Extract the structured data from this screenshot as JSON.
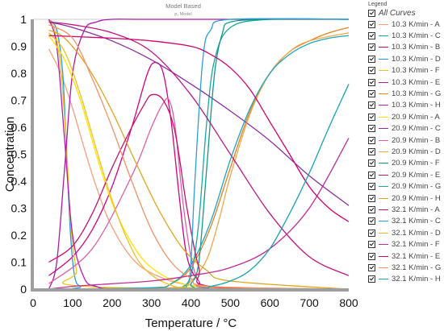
{
  "header": {
    "title": "Model Based",
    "subtitle": "p₁ Model"
  },
  "legend": {
    "title": "Legend",
    "all_label": "All Curves",
    "items": [
      {
        "label": "10.3 K/min - A",
        "color": "#F4A07F"
      },
      {
        "label": "10.3 K/min - C",
        "color": "#17A9A0"
      },
      {
        "label": "10.3 K/min - B",
        "color": "#D7007F"
      },
      {
        "label": "10.3 K/min - D",
        "color": "#1E9ED9"
      },
      {
        "label": "10.3 K/min - F",
        "color": "#F2C21B"
      },
      {
        "label": "10.3 K/min - E",
        "color": "#AE1BA1"
      },
      {
        "label": "10.3 K/min - G",
        "color": "#E8801E"
      },
      {
        "label": "10.3 K/min - H",
        "color": "#B51FB0"
      },
      {
        "label": "20.9 K/min - A",
        "color": "#FFE200"
      },
      {
        "label": "20.9 K/min - C",
        "color": "#8C2C9F"
      },
      {
        "label": "20.9 K/min - B",
        "color": "#DF5FA7"
      },
      {
        "label": "20.9 K/min - D",
        "color": "#F0A64A"
      },
      {
        "label": "20.9 K/min - F",
        "color": "#0E9A8A"
      },
      {
        "label": "20.9 K/min - E",
        "color": "#C1167F"
      },
      {
        "label": "20.9 K/min - G",
        "color": "#1AA6C2"
      },
      {
        "label": "20.9 K/min - H",
        "color": "#E0A51F"
      },
      {
        "label": "32.1 K/min - A",
        "color": "#C8106E"
      },
      {
        "label": "32.1 K/min - C",
        "color": "#2C9ED8"
      },
      {
        "label": "32.1 K/min - D",
        "color": "#F0C020"
      },
      {
        "label": "32.1 K/min - F",
        "color": "#C02E98"
      },
      {
        "label": "32.1 K/min - E",
        "color": "#D4006D"
      },
      {
        "label": "32.1 K/min - G",
        "color": "#F29268"
      },
      {
        "label": "32.1 K/min - H",
        "color": "#16A5B5"
      }
    ]
  },
  "chart_data": {
    "type": "line",
    "xlabel": "Temperature / °C",
    "ylabel": "Concentration",
    "xlim": [
      0,
      800
    ],
    "ylim": [
      0,
      1
    ],
    "xticks": [
      0,
      100,
      200,
      300,
      400,
      500,
      600,
      700,
      800
    ],
    "yticks": [
      0,
      0.1,
      0.2,
      0.3,
      0.4,
      0.5,
      0.6,
      0.7,
      0.8,
      0.9,
      1
    ],
    "grid": false,
    "legend_position": "right",
    "series": [
      {
        "name": "10.3 K/min - A",
        "color": "#F4A07F",
        "x": [
          40,
          70,
          100,
          130,
          160,
          200,
          260,
          330,
          400,
          500,
          600,
          800
        ],
        "y": [
          0.89,
          0.8,
          0.67,
          0.52,
          0.38,
          0.23,
          0.1,
          0.04,
          0.015,
          0.006,
          0.003,
          0.001
        ]
      },
      {
        "name": "10.3 K/min - C",
        "color": "#17A9A0",
        "x": [
          40,
          350,
          380,
          400,
          420,
          440,
          460,
          500,
          600,
          800
        ],
        "y": [
          0,
          0,
          0.01,
          0.05,
          0.25,
          0.62,
          0.85,
          0.97,
          1,
          1
        ]
      },
      {
        "name": "10.3 K/min - B",
        "color": "#D7007F",
        "x": [
          40,
          100,
          150,
          200,
          250,
          290,
          310,
          330,
          350,
          370,
          390,
          420,
          460,
          800
        ],
        "y": [
          0.05,
          0.12,
          0.22,
          0.38,
          0.6,
          0.8,
          0.84,
          0.8,
          0.62,
          0.35,
          0.12,
          0.03,
          0.005,
          0
        ]
      },
      {
        "name": "10.3 K/min - D",
        "color": "#1E9ED9",
        "x": [
          40,
          60,
          75,
          85,
          95,
          105,
          120,
          160,
          800
        ],
        "y": [
          1,
          0.96,
          0.8,
          0.5,
          0.2,
          0.05,
          0.01,
          0,
          0
        ]
      },
      {
        "name": "10.3 K/min - F",
        "color": "#F2C21B",
        "x": [
          40,
          55,
          70,
          85,
          95,
          110,
          130,
          800
        ],
        "y": [
          1,
          0.96,
          0.82,
          0.52,
          0.25,
          0.07,
          0.01,
          0
        ]
      },
      {
        "name": "10.3 K/min - E",
        "color": "#AE1BA1",
        "x": [
          40,
          60,
          80,
          100,
          130,
          160,
          200,
          300,
          800
        ],
        "y": [
          0,
          0.1,
          0.45,
          0.8,
          0.96,
          0.99,
          1,
          1,
          1
        ]
      },
      {
        "name": "10.3 K/min - G",
        "color": "#E8801E",
        "x": [
          40,
          300,
          350,
          400,
          450,
          500,
          550,
          600,
          650,
          700,
          750,
          800
        ],
        "y": [
          0,
          0.005,
          0.02,
          0.08,
          0.23,
          0.45,
          0.66,
          0.8,
          0.88,
          0.92,
          0.95,
          0.97
        ]
      },
      {
        "name": "10.3 K/min - H",
        "color": "#B51FB0",
        "x": [
          40,
          60,
          80,
          100,
          130,
          160,
          200,
          300,
          800
        ],
        "y": [
          1,
          0.9,
          0.55,
          0.2,
          0.04,
          0.01,
          0,
          0,
          0
        ]
      },
      {
        "name": "20.9 K/min - A",
        "color": "#FFE200",
        "x": [
          40,
          80,
          120,
          160,
          200,
          250,
          300,
          380,
          500,
          800
        ],
        "y": [
          0.94,
          0.85,
          0.7,
          0.5,
          0.32,
          0.17,
          0.08,
          0.02,
          0.005,
          0
        ]
      },
      {
        "name": "20.9 K/min - C",
        "color": "#8C2C9F",
        "x": [
          40,
          100,
          200,
          300,
          400,
          500,
          600,
          700,
          800
        ],
        "y": [
          0.99,
          0.97,
          0.92,
          0.85,
          0.76,
          0.66,
          0.55,
          0.42,
          0.31
        ]
      },
      {
        "name": "20.9 K/min - B",
        "color": "#DF5FA7",
        "x": [
          40,
          150,
          250,
          300,
          330,
          345,
          360,
          380,
          400,
          420,
          450,
          800
        ],
        "y": [
          0.02,
          0.15,
          0.42,
          0.6,
          0.69,
          0.7,
          0.6,
          0.32,
          0.12,
          0.03,
          0.005,
          0
        ]
      },
      {
        "name": "20.9 K/min - D",
        "color": "#F0A64A",
        "x": [
          40,
          350,
          400,
          440,
          470,
          500,
          550,
          600,
          650,
          700,
          800
        ],
        "y": [
          0,
          0.005,
          0.03,
          0.11,
          0.25,
          0.42,
          0.65,
          0.8,
          0.88,
          0.92,
          0.95
        ]
      },
      {
        "name": "20.9 K/min - F",
        "color": "#0E9A8A",
        "x": [
          40,
          380,
          400,
          420,
          440,
          460,
          480,
          500,
          600,
          800
        ],
        "y": [
          0,
          0,
          0.02,
          0.1,
          0.45,
          0.8,
          0.95,
          0.99,
          1,
          1
        ]
      },
      {
        "name": "20.9 K/min - E",
        "color": "#C1167F",
        "x": [
          40,
          100,
          200,
          300,
          400,
          500,
          600,
          700,
          800
        ],
        "y": [
          0.99,
          0.98,
          0.95,
          0.88,
          0.72,
          0.5,
          0.28,
          0.12,
          0.05
        ]
      },
      {
        "name": "20.9 K/min - G",
        "color": "#1AA6C2",
        "x": [
          40,
          300,
          350,
          400,
          450,
          500,
          550,
          600,
          650,
          700,
          750,
          800
        ],
        "y": [
          0,
          0.005,
          0.02,
          0.09,
          0.25,
          0.48,
          0.67,
          0.8,
          0.87,
          0.91,
          0.93,
          0.94
        ]
      },
      {
        "name": "20.9 K/min - H",
        "color": "#E0A51F",
        "x": [
          40,
          80,
          140,
          200,
          260,
          320,
          380,
          440,
          500,
          800
        ],
        "y": [
          0.96,
          0.93,
          0.82,
          0.66,
          0.47,
          0.29,
          0.15,
          0.07,
          0.03,
          0
        ]
      },
      {
        "name": "32.1 K/min - A",
        "color": "#C8106E",
        "x": [
          40,
          100,
          150,
          200,
          250,
          280,
          300,
          330,
          360,
          390,
          420,
          450,
          800
        ],
        "y": [
          0.1,
          0.16,
          0.28,
          0.45,
          0.6,
          0.68,
          0.72,
          0.7,
          0.58,
          0.3,
          0.08,
          0.01,
          0
        ]
      },
      {
        "name": "32.1 K/min - C",
        "color": "#2C9ED8",
        "x": [
          40,
          350,
          390,
          400,
          410,
          430,
          450,
          500,
          800
        ],
        "y": [
          0,
          0,
          0.02,
          0.1,
          0.4,
          0.85,
          0.96,
          1,
          1
        ]
      },
      {
        "name": "32.1 K/min - D",
        "color": "#F0C020",
        "x": [
          40,
          80,
          120,
          160,
          200,
          240,
          280,
          340,
          420,
          800
        ],
        "y": [
          0.95,
          0.88,
          0.72,
          0.52,
          0.33,
          0.18,
          0.08,
          0.02,
          0.004,
          0
        ]
      },
      {
        "name": "32.1 K/min - F",
        "color": "#C02E98",
        "x": [
          40,
          100,
          200,
          300,
          400,
          500,
          600,
          700,
          800
        ],
        "y": [
          0,
          0.01,
          0.02,
          0.03,
          0.05,
          0.08,
          0.15,
          0.3,
          0.56
        ]
      },
      {
        "name": "32.1 K/min - E",
        "color": "#D4006D",
        "x": [
          40,
          200,
          300,
          400,
          450,
          500,
          550,
          600,
          650,
          700,
          750,
          800
        ],
        "y": [
          0.94,
          0.93,
          0.92,
          0.9,
          0.87,
          0.82,
          0.74,
          0.62,
          0.5,
          0.38,
          0.3,
          0.25
        ]
      },
      {
        "name": "32.1 K/min - G",
        "color": "#F29268",
        "x": [
          40,
          100,
          150,
          200,
          250,
          300,
          350,
          400,
          450,
          800
        ],
        "y": [
          0.98,
          0.93,
          0.78,
          0.6,
          0.4,
          0.22,
          0.1,
          0.04,
          0.01,
          0
        ]
      },
      {
        "name": "32.1 K/min - H",
        "color": "#16A5B5",
        "x": [
          40,
          400,
          450,
          500,
          550,
          600,
          650,
          700,
          750,
          800
        ],
        "y": [
          0,
          0.002,
          0.01,
          0.03,
          0.07,
          0.15,
          0.28,
          0.43,
          0.6,
          0.76
        ]
      }
    ]
  }
}
